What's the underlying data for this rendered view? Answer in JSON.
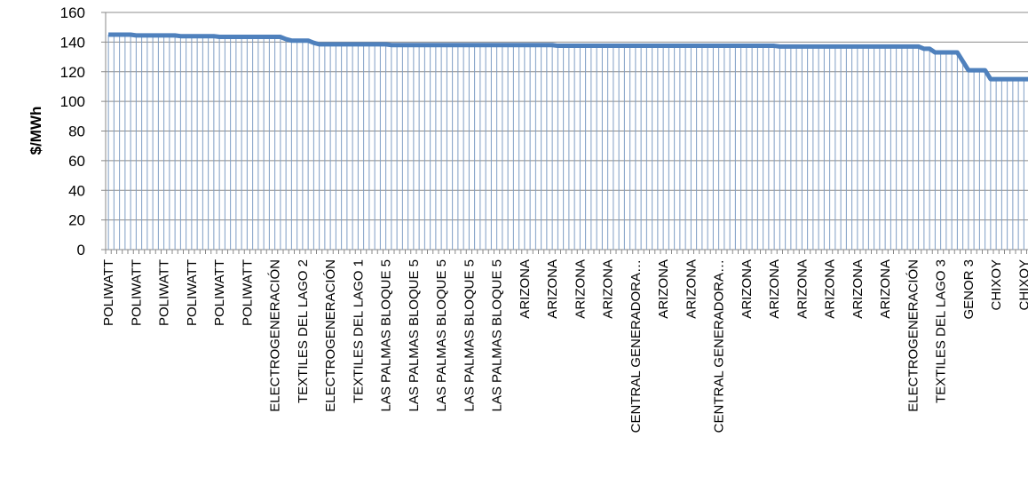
{
  "chart_data": {
    "type": "line",
    "y_label": "$/MWh",
    "categories": [
      "POLIWATT",
      null,
      null,
      null,
      null,
      "POLIWATT",
      null,
      null,
      null,
      null,
      "POLIWATT",
      null,
      null,
      null,
      null,
      "POLIWATT",
      null,
      null,
      null,
      null,
      "POLIWATT",
      null,
      null,
      null,
      null,
      "POLIWATT",
      null,
      null,
      null,
      null,
      "ELECTROGENERACIÓN",
      null,
      null,
      null,
      null,
      "TEXTILES DEL LAGO 2",
      null,
      null,
      null,
      null,
      "ELECTROGENERACIÓN",
      null,
      null,
      null,
      null,
      "TEXTILES DEL LAGO 1",
      null,
      null,
      null,
      null,
      "LAS PALMAS BLOQUE 5",
      null,
      null,
      null,
      null,
      "LAS PALMAS BLOQUE 5",
      null,
      null,
      null,
      null,
      "LAS PALMAS BLOQUE 5",
      null,
      null,
      null,
      null,
      "LAS PALMAS BLOQUE 5",
      null,
      null,
      null,
      null,
      "LAS PALMAS BLOQUE 5",
      null,
      null,
      null,
      null,
      "ARIZONA",
      null,
      null,
      null,
      null,
      "ARIZONA",
      null,
      null,
      null,
      null,
      "ARIZONA",
      null,
      null,
      null,
      null,
      "ARIZONA",
      null,
      null,
      null,
      null,
      "CENTRAL GENERADORA…",
      null,
      null,
      null,
      null,
      "ARIZONA",
      null,
      null,
      null,
      null,
      "ARIZONA",
      null,
      null,
      null,
      null,
      "CENTRAL GENERADORA…",
      null,
      null,
      null,
      null,
      "ARIZONA",
      null,
      null,
      null,
      null,
      "ARIZONA",
      null,
      null,
      null,
      null,
      "ARIZONA",
      null,
      null,
      null,
      null,
      "ARIZONA",
      null,
      null,
      null,
      null,
      "ARIZONA",
      null,
      null,
      null,
      null,
      "ARIZONA",
      null,
      null,
      null,
      null,
      "ELECTROGENERACIÓN",
      null,
      null,
      null,
      null,
      "TEXTILES DEL LAGO 3",
      null,
      null,
      null,
      null,
      "GENOR 3",
      null,
      null,
      null,
      null,
      "CHIXOY",
      null,
      null,
      null,
      null,
      "CHIXOY",
      null,
      null,
      null,
      null
    ],
    "values": [
      145,
      145,
      145,
      145,
      145,
      144.5,
      144.5,
      144.5,
      144.5,
      144.5,
      144.5,
      144.5,
      144.5,
      144,
      144,
      144,
      144,
      144,
      144,
      144,
      143.5,
      143.5,
      143.5,
      143.5,
      143.5,
      143.5,
      143.5,
      143.5,
      143.5,
      143.5,
      143.5,
      143.5,
      142,
      141,
      141,
      141,
      141,
      139.5,
      138.5,
      138.5,
      138.5,
      138.5,
      138.5,
      138.5,
      138.5,
      138.5,
      138.5,
      138.5,
      138.5,
      138.5,
      138.5,
      138,
      138,
      138,
      138,
      138,
      138,
      138,
      138,
      138,
      138,
      138,
      138,
      138,
      138,
      138,
      138,
      138,
      138,
      138,
      138,
      138,
      138,
      138,
      138,
      138,
      138,
      138,
      138,
      138,
      138,
      137.5,
      137.5,
      137.5,
      137.5,
      137.5,
      137.5,
      137.5,
      137.5,
      137.5,
      137.5,
      137.5,
      137.5,
      137.5,
      137.5,
      137.5,
      137.5,
      137.5,
      137.5,
      137.5,
      137.5,
      137.5,
      137.5,
      137.5,
      137.5,
      137.5,
      137.5,
      137.5,
      137.5,
      137.5,
      137.5,
      137.5,
      137.5,
      137.5,
      137.5,
      137.5,
      137.5,
      137.5,
      137.5,
      137.5,
      137.5,
      137,
      137,
      137,
      137,
      137,
      137,
      137,
      137,
      137,
      137,
      137,
      137,
      137,
      137,
      137,
      137,
      137,
      137,
      137,
      137,
      137,
      137,
      137,
      137,
      137,
      137,
      135.5,
      135.5,
      133,
      133,
      133,
      133,
      133,
      127,
      121,
      121,
      121,
      121,
      115,
      115,
      115,
      115,
      115,
      115,
      115,
      115,
      115,
      115,
      115
    ],
    "color": "#4f81bd",
    "drop_line_color": "#7f9ec4",
    "ylim": [
      0,
      160
    ],
    "yticks": [
      0,
      20,
      40,
      60,
      80,
      100,
      120,
      140,
      160
    ],
    "grid": true
  }
}
